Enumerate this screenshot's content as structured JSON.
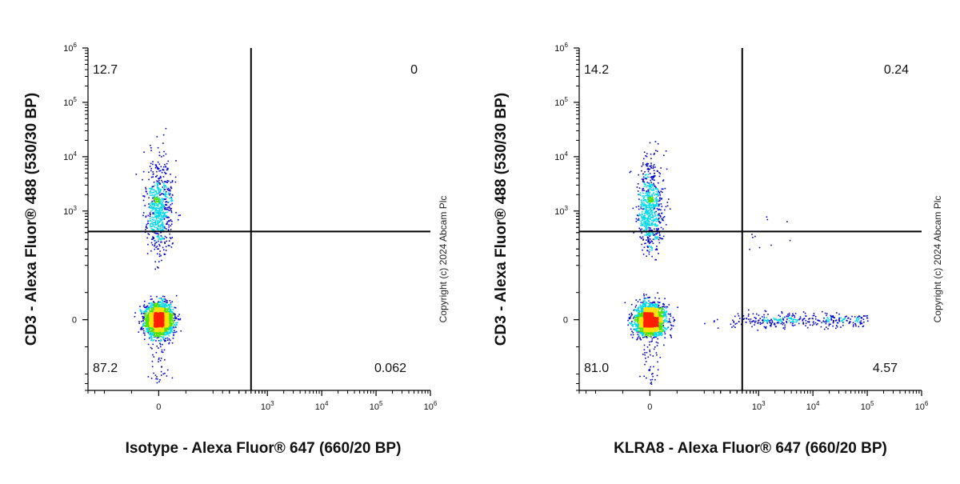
{
  "chart_data": [
    {
      "type": "scatter",
      "subtype": "flow-cytometry-density-dot-plot",
      "xlabel": "Isotype - Alexa Fluor® 647 (660/20 BP)",
      "ylabel": "CD3 - Alexa Fluor® 488 (530/30 BP)",
      "x_scale": "biexponential",
      "y_scale": "biexponential",
      "xlim": [
        -200,
        1000000
      ],
      "ylim": [
        -200,
        1000000
      ],
      "x_ticks": [
        {
          "base": "0",
          "exp": ""
        },
        {
          "base": "10",
          "exp": "3"
        },
        {
          "base": "10",
          "exp": "4"
        },
        {
          "base": "10",
          "exp": "5"
        },
        {
          "base": "10",
          "exp": "6"
        }
      ],
      "y_ticks": [
        {
          "base": "0",
          "exp": ""
        },
        {
          "base": "10",
          "exp": "3"
        },
        {
          "base": "10",
          "exp": "4"
        },
        {
          "base": "10",
          "exp": "5"
        },
        {
          "base": "10",
          "exp": "6"
        }
      ],
      "quadrant_gate": {
        "x": 500,
        "y": 420
      },
      "quadrant_values": {
        "top_left": "12.7",
        "top_right": "0",
        "bottom_left": "87.2",
        "bottom_right": "0.062"
      },
      "populations": [
        {
          "name": "CD3- cluster",
          "x": 0,
          "y": 0,
          "level": "high"
        },
        {
          "name": "CD3+ cluster",
          "x": 0,
          "y": 1200,
          "level": "medium"
        }
      ],
      "grid": false,
      "copyright": "Copyright (c) 2024 Abcam Plc"
    },
    {
      "type": "scatter",
      "subtype": "flow-cytometry-density-dot-plot",
      "xlabel": "KLRA8 - Alexa Fluor® 647 (660/20 BP)",
      "ylabel": "CD3 - Alexa Fluor® 488 (530/30 BP)",
      "x_scale": "biexponential",
      "y_scale": "biexponential",
      "xlim": [
        -200,
        1000000
      ],
      "ylim": [
        -200,
        1000000
      ],
      "x_ticks": [
        {
          "base": "0",
          "exp": ""
        },
        {
          "base": "10",
          "exp": "3"
        },
        {
          "base": "10",
          "exp": "4"
        },
        {
          "base": "10",
          "exp": "5"
        },
        {
          "base": "10",
          "exp": "6"
        }
      ],
      "y_ticks": [
        {
          "base": "0",
          "exp": ""
        },
        {
          "base": "10",
          "exp": "3"
        },
        {
          "base": "10",
          "exp": "4"
        },
        {
          "base": "10",
          "exp": "5"
        },
        {
          "base": "10",
          "exp": "6"
        }
      ],
      "quadrant_gate": {
        "x": 500,
        "y": 420
      },
      "quadrant_values": {
        "top_left": "14.2",
        "top_right": "0.24",
        "bottom_left": "81.0",
        "bottom_right": "4.57"
      },
      "populations": [
        {
          "name": "CD3- cluster",
          "x": 0,
          "y": 0,
          "level": "high"
        },
        {
          "name": "CD3+ cluster",
          "x": 0,
          "y": 1200,
          "level": "medium"
        },
        {
          "name": "KLRA8+ CD3- cells",
          "x": 2500,
          "y": 0,
          "level": "low"
        }
      ],
      "grid": false,
      "copyright": "Copyright (c) 2024 Abcam Plc"
    }
  ],
  "colors": {
    "axis": "#000000",
    "density_low": "#0000c8",
    "density_mid": "#00d8e8",
    "density_midhigh": "#50e000",
    "density_high": "#ffe000",
    "density_peak": "#ff2000"
  }
}
